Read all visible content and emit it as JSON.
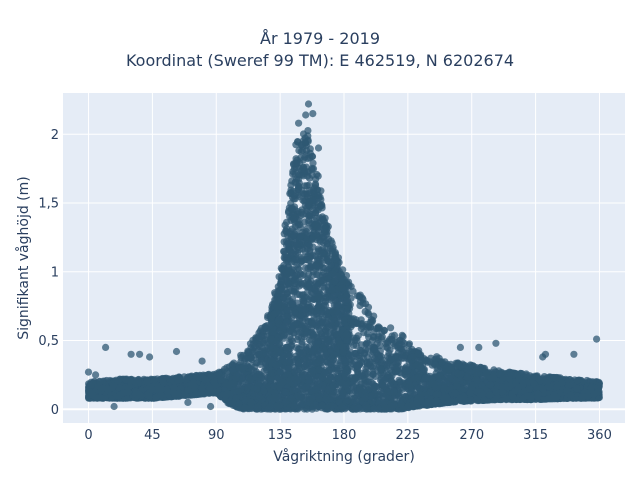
{
  "chart_data": {
    "type": "scatter",
    "title_lines": [
      "År 1979 - 2019",
      "Koordinat (Sweref 99 TM): E 462519, N 6202674"
    ],
    "xlabel": "Vågriktning (grader)",
    "ylabel": "Signifikant våghöjd (m)",
    "xlim": [
      -18,
      378
    ],
    "ylim": [
      -0.1,
      2.3
    ],
    "xticks": [
      0,
      45,
      90,
      135,
      180,
      225,
      270,
      315,
      360
    ],
    "xtick_labels": [
      "0",
      "45",
      "90",
      "135",
      "180",
      "225",
      "270",
      "315",
      "360"
    ],
    "yticks": [
      0,
      0.5,
      1,
      1.5,
      2
    ],
    "ytick_labels": [
      "0",
      "0,5",
      "1",
      "1,5",
      "2"
    ],
    "grid": true,
    "point_color": "#2f5873",
    "envelope": {
      "x": [
        0,
        20,
        45,
        70,
        90,
        100,
        110,
        120,
        128,
        135,
        140,
        145,
        150,
        155,
        160,
        165,
        170,
        175,
        180,
        190,
        200,
        210,
        220,
        230,
        240,
        255,
        270,
        290,
        315,
        340,
        360
      ],
      "upper": [
        0.2,
        0.22,
        0.22,
        0.24,
        0.26,
        0.32,
        0.42,
        0.56,
        0.72,
        1.0,
        1.5,
        1.95,
        2.05,
        2.1,
        1.85,
        1.55,
        1.3,
        1.15,
        1.0,
        0.85,
        0.72,
        0.62,
        0.55,
        0.45,
        0.4,
        0.35,
        0.32,
        0.28,
        0.25,
        0.22,
        0.2
      ],
      "lower": [
        0.08,
        0.08,
        0.08,
        0.1,
        0.12,
        0.03,
        0.0,
        0.0,
        0.0,
        0.0,
        0.0,
        0.0,
        0.0,
        0.0,
        0.0,
        0.0,
        0.0,
        0.0,
        0.0,
        0.0,
        0.0,
        0.0,
        0.0,
        0.02,
        0.03,
        0.05,
        0.06,
        0.07,
        0.07,
        0.08,
        0.08
      ]
    },
    "outliers": [
      [
        12,
        0.45
      ],
      [
        30,
        0.4
      ],
      [
        36,
        0.4
      ],
      [
        43,
        0.38
      ],
      [
        62,
        0.42
      ],
      [
        80,
        0.35
      ],
      [
        98,
        0.42
      ],
      [
        155,
        2.22
      ],
      [
        153,
        2.14
      ],
      [
        158,
        2.15
      ],
      [
        148,
        2.08
      ],
      [
        162,
        1.9
      ],
      [
        262,
        0.45
      ],
      [
        275,
        0.45
      ],
      [
        287,
        0.48
      ],
      [
        320,
        0.38
      ],
      [
        322,
        0.4
      ],
      [
        342,
        0.4
      ],
      [
        358,
        0.51
      ],
      [
        0,
        0.27
      ],
      [
        5,
        0.25
      ],
      [
        8,
        0.2
      ],
      [
        18,
        0.02
      ],
      [
        70,
        0.05
      ],
      [
        86,
        0.02
      ]
    ]
  }
}
